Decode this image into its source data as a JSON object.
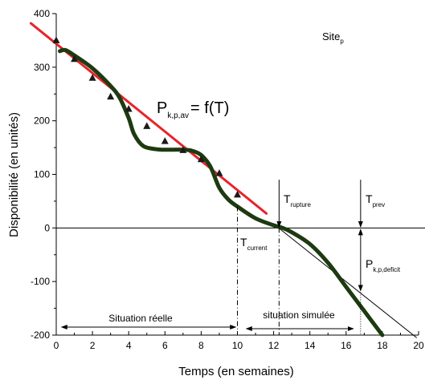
{
  "chart_data": {
    "type": "line",
    "title": "",
    "xlabel": "Temps (en semaines)",
    "ylabel": "Disponibilité (en unités)",
    "xlim": [
      0,
      20
    ],
    "ylim": [
      -200,
      400
    ],
    "x_ticks": [
      0,
      2,
      4,
      6,
      8,
      10,
      12,
      14,
      16,
      18,
      20
    ],
    "y_ticks": [
      -200,
      -100,
      0,
      100,
      200,
      300,
      400
    ],
    "grid": false,
    "legend": "none",
    "series": [
      {
        "kind": "triangle-markers",
        "color": "#1a1a1a",
        "x": [
          0,
          1,
          2,
          3,
          4,
          5,
          6,
          7,
          8,
          9,
          10
        ],
        "y": [
          350,
          315,
          280,
          245,
          222,
          190,
          162,
          145,
          128,
          102,
          62
        ]
      },
      {
        "kind": "linear-fit",
        "color": "#e8232a",
        "x": [
          -1.4,
          11.6
        ],
        "y": [
          382,
          27
        ]
      },
      {
        "kind": "smooth-curve",
        "color": "#1d3a10",
        "x": [
          0.2,
          0.5,
          1,
          2,
          3,
          3.5,
          4,
          4.3,
          4.8,
          5.5,
          6,
          7,
          7.5,
          8,
          8.5,
          9,
          9.5,
          10,
          11,
          12,
          12.5,
          13,
          14,
          15,
          16,
          17,
          18
        ],
        "y": [
          330,
          332,
          322,
          298,
          265,
          243,
          205,
          175,
          153,
          147,
          146,
          146,
          144,
          136,
          115,
          75,
          53,
          40,
          18,
          5,
          0,
          -8,
          -30,
          -65,
          -110,
          -155,
          -200
        ]
      },
      {
        "kind": "extrapolation-line",
        "color": "#000000",
        "x": [
          12.2,
          19.9
        ],
        "y": [
          2,
          -205
        ]
      }
    ],
    "annotations": {
      "site": "Site",
      "site_sub": "p",
      "curve_label_main": "P",
      "curve_label_sub": "k,p,av",
      "curve_label_rest": "= f(T)",
      "t_rupture": "T",
      "t_rupture_sub": "rupture",
      "t_prev": "T",
      "t_prev_sub": "prev",
      "t_current": "T",
      "t_current_sub": "current",
      "p_deficit": "P",
      "p_deficit_sub": "k,p,deficit",
      "situation_reelle": "Situation réelle",
      "situation_simulee": "situation simulée"
    },
    "markers_x": {
      "t_current": 10,
      "t_rupture": 12.3,
      "t_prev": 16.8
    },
    "ranges": {
      "reelle": [
        0.3,
        9.9
      ],
      "simulee": [
        10.5,
        16.4
      ],
      "deficit": [
        0,
        -120
      ]
    }
  }
}
